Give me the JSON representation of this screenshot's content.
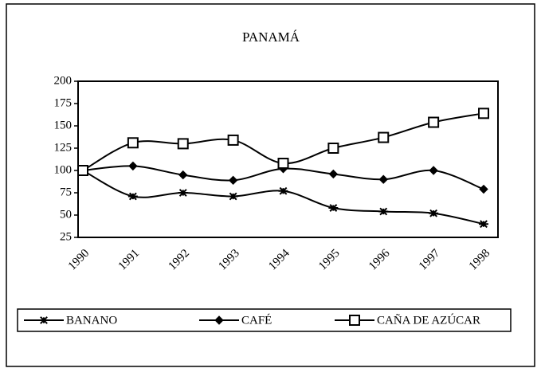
{
  "chart_data": {
    "type": "line",
    "title": "PANAMÁ",
    "categories": [
      "1990",
      "1991",
      "1992",
      "1993",
      "1994",
      "1995",
      "1996",
      "1997",
      "1998"
    ],
    "series": [
      {
        "name": "BANANO",
        "color": "#000000",
        "marker": "asterisk",
        "values": [
          100,
          71,
          75,
          71,
          77,
          58,
          54,
          52,
          40
        ]
      },
      {
        "name": "CAFÉ",
        "color": "#000000",
        "marker": "diamond",
        "values": [
          100,
          105,
          95,
          89,
          102,
          96,
          90,
          100,
          79
        ]
      },
      {
        "name": "CAÑA DE AZÚCAR",
        "color": "#000000",
        "marker": "square",
        "values": [
          100,
          131,
          130,
          134,
          108,
          125,
          137,
          154,
          164
        ]
      }
    ],
    "ylim": [
      25,
      200
    ],
    "yticks": [
      25,
      50,
      75,
      100,
      125,
      150,
      175,
      200
    ],
    "grid": false,
    "legend": "bottom"
  }
}
